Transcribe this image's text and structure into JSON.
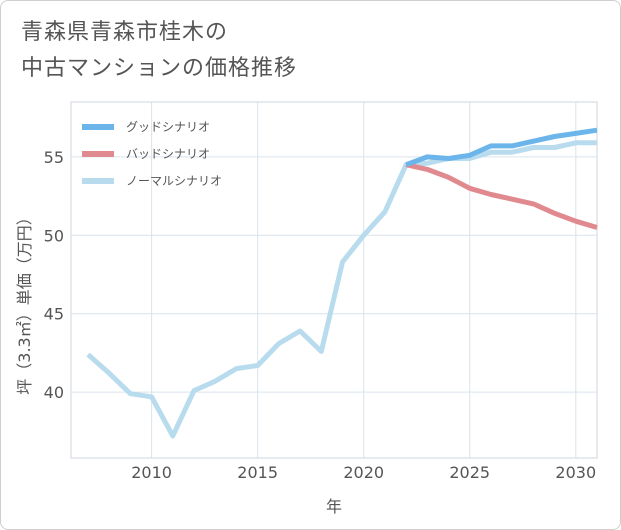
{
  "title": {
    "line1": "青森県青森市桂木の",
    "line2": "中古マンションの価格推移"
  },
  "chart_data": {
    "type": "line",
    "xlabel": "年",
    "ylabel": "坪（3.3㎡）単価（万円）",
    "xlim": [
      2006.2,
      2031
    ],
    "ylim": [
      35.8,
      58.5
    ],
    "x_ticks": [
      "2010",
      "2015",
      "2020",
      "2025",
      "2030"
    ],
    "y_ticks": [
      "40",
      "45",
      "50",
      "55"
    ],
    "grid": true,
    "legend_position": "top-left",
    "series": [
      {
        "name": "グッドシナリオ",
        "color": "#6bb5ea",
        "x": [
          2022,
          2023,
          2024,
          2025,
          2026,
          2027,
          2028,
          2029,
          2030,
          2031
        ],
        "y": [
          54.5,
          55.0,
          54.9,
          55.1,
          55.7,
          55.7,
          56.0,
          56.3,
          56.5,
          56.7
        ]
      },
      {
        "name": "バッドシナリオ",
        "color": "#e08a8f",
        "x": [
          2022,
          2023,
          2024,
          2025,
          2026,
          2027,
          2028,
          2029,
          2030,
          2031
        ],
        "y": [
          54.5,
          54.2,
          53.7,
          53.0,
          52.6,
          52.3,
          52.0,
          51.4,
          50.9,
          50.5
        ]
      },
      {
        "name": "ノーマルシナリオ",
        "color": "#b8dcee",
        "x": [
          2007,
          2008,
          2009,
          2010,
          2011,
          2012,
          2013,
          2014,
          2015,
          2016,
          2017,
          2018,
          2019,
          2020,
          2021,
          2022,
          2023,
          2024,
          2025,
          2026,
          2027,
          2028,
          2029,
          2030,
          2031
        ],
        "y": [
          42.4,
          41.2,
          39.9,
          39.7,
          37.2,
          40.1,
          40.7,
          41.5,
          41.7,
          43.1,
          43.9,
          42.6,
          48.3,
          50.0,
          51.5,
          54.5,
          54.6,
          54.9,
          54.9,
          55.3,
          55.3,
          55.6,
          55.6,
          55.9,
          55.9
        ]
      }
    ]
  }
}
